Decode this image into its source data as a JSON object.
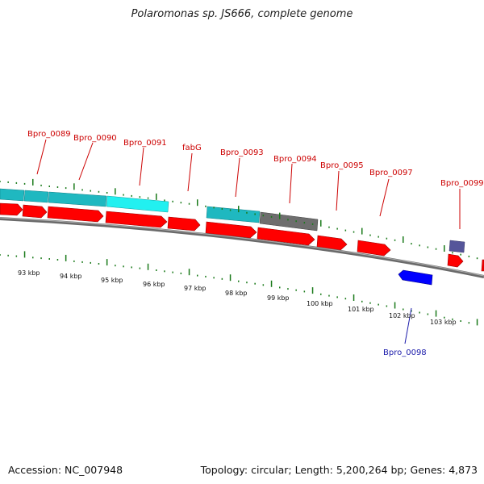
{
  "title": "Polaromonas sp. JS666, complete genome",
  "footer": {
    "accession": "Accession: NC_007948",
    "summary": "Topology: circular; Length: 5,200,264 bp; Genes: 4,873"
  },
  "colors": {
    "cds_forward": "#ff0000",
    "cds_reverse": "#0000ff",
    "feature_cyan": "#1fb8c0",
    "feature_cyan_light": "#22f0f0",
    "feature_gray": "#6e6e6e",
    "feature_purple": "#55559a",
    "backbone": "#808080",
    "ticks": "#1a7a1a"
  },
  "kbp_labels": [
    "93 kbp",
    "94 kbp",
    "95 kbp",
    "96 kbp",
    "97 kbp",
    "98 kbp",
    "99 kbp",
    "100 kbp",
    "101 kbp",
    "102 kbp",
    "103 kbp"
  ],
  "gene_labels": [
    {
      "text": "Bpro_0089",
      "strand": "forward"
    },
    {
      "text": "Bpro_0090",
      "strand": "forward"
    },
    {
      "text": "Bpro_0091",
      "strand": "forward"
    },
    {
      "text": "fabG",
      "strand": "forward"
    },
    {
      "text": "Bpro_0093",
      "strand": "forward"
    },
    {
      "text": "Bpro_0094",
      "strand": "forward"
    },
    {
      "text": "Bpro_0095",
      "strand": "forward"
    },
    {
      "text": "Bpro_0097",
      "strand": "forward"
    },
    {
      "text": "Bpro_0099",
      "strand": "forward"
    },
    {
      "text": "Bpro_0098",
      "strand": "reverse"
    }
  ]
}
